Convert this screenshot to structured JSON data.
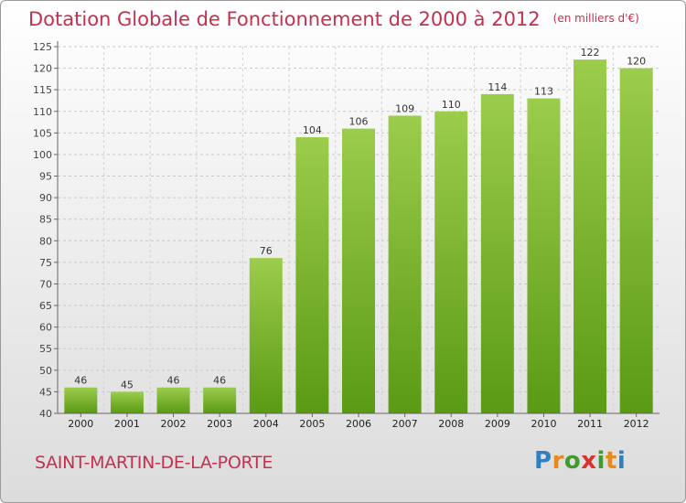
{
  "header": {
    "title": "Dotation Globale de Fonctionnement de 2000 à 2012",
    "unit": "(en milliers d'€)"
  },
  "footer": {
    "commune": "SAINT-MARTIN-DE-LA-PORTE",
    "logo_letters": [
      "P",
      "r",
      "o",
      "x",
      "i",
      "t",
      "i"
    ],
    "logo_colors": [
      "#2f7fc1",
      "#e8891c",
      "#3f9a2f",
      "#d8322c",
      "#3f9a2f",
      "#e8891c",
      "#2f7fc1"
    ]
  },
  "colors": {
    "bar_top": "#9ccc4c",
    "bar_bottom": "#5a9a14",
    "title": "#c5304e"
  },
  "chart_data": {
    "type": "bar",
    "categories": [
      "2000",
      "2001",
      "2002",
      "2003",
      "2004",
      "2005",
      "2006",
      "2007",
      "2008",
      "2009",
      "2010",
      "2011",
      "2012"
    ],
    "values": [
      46,
      45,
      46,
      46,
      76,
      104,
      106,
      109,
      110,
      114,
      113,
      122,
      120
    ],
    "ylim": [
      40,
      125
    ],
    "yticks": [
      40,
      45,
      50,
      55,
      60,
      65,
      70,
      75,
      80,
      85,
      90,
      95,
      100,
      105,
      110,
      115,
      120,
      125
    ],
    "grid": true,
    "xlabel": "",
    "ylabel": ""
  }
}
